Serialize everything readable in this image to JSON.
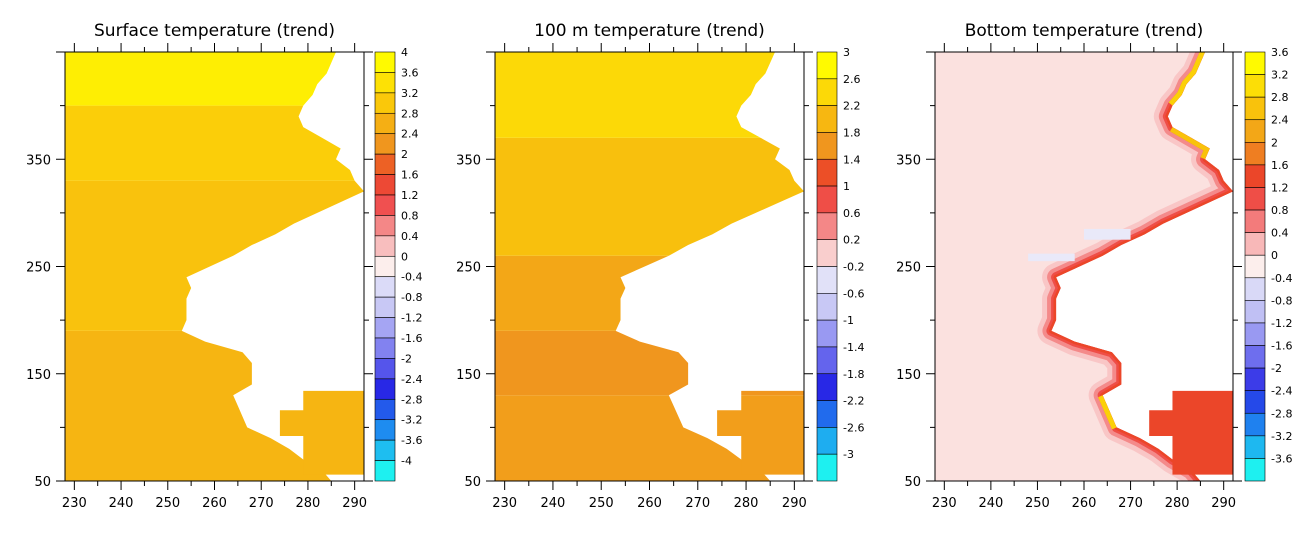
{
  "chart_data": [
    {
      "type": "heatmap",
      "title": "Surface temperature (trend)",
      "xlabel": "",
      "ylabel": "",
      "xlim": [
        228,
        292
      ],
      "ylim": [
        50,
        450
      ],
      "xticks": [
        230,
        240,
        250,
        260,
        270,
        280,
        290
      ],
      "yticks": [
        50,
        150,
        250,
        350
      ],
      "colorbar": {
        "min": -4,
        "max": 4,
        "labels": [
          "4",
          "3.6",
          "3.2",
          "2.8",
          "2.4",
          "2",
          "1.6",
          "1.2",
          "0.8",
          "0.4",
          "0",
          "-0.4",
          "-0.8",
          "-1.2",
          "-1.6",
          "-2",
          "-2.4",
          "-2.8",
          "-3.2",
          "-3.6",
          "-4"
        ]
      },
      "boundary_x": [
        [
          50,
          285
        ],
        [
          60,
          283
        ],
        [
          70,
          279
        ],
        [
          80,
          276
        ],
        [
          90,
          272
        ],
        [
          100,
          267
        ],
        [
          110,
          266
        ],
        [
          120,
          265
        ],
        [
          130,
          264
        ],
        [
          140,
          268
        ],
        [
          150,
          268
        ],
        [
          160,
          268
        ],
        [
          170,
          266
        ],
        [
          180,
          258
        ],
        [
          190,
          253
        ],
        [
          200,
          254
        ],
        [
          210,
          254
        ],
        [
          220,
          254
        ],
        [
          230,
          255
        ],
        [
          240,
          254
        ],
        [
          250,
          259
        ],
        [
          260,
          264
        ],
        [
          270,
          268
        ],
        [
          280,
          273
        ],
        [
          290,
          277
        ],
        [
          300,
          282
        ],
        [
          310,
          287
        ],
        [
          320,
          292
        ],
        [
          330,
          290
        ],
        [
          340,
          289
        ],
        [
          350,
          286
        ],
        [
          360,
          287
        ],
        [
          370,
          283
        ],
        [
          380,
          279
        ],
        [
          390,
          278
        ],
        [
          400,
          279
        ],
        [
          410,
          281
        ],
        [
          420,
          282
        ],
        [
          430,
          284
        ],
        [
          440,
          285
        ],
        [
          450,
          286
        ]
      ],
      "islands": [
        {
          "x": [
            279,
            292
          ],
          "y": [
            56,
            134
          ]
        },
        {
          "x": [
            274,
            285
          ],
          "y": [
            92,
            116
          ]
        }
      ],
      "value_bands": [
        {
          "y": [
            50,
            190
          ],
          "value": 2.9
        },
        {
          "y": [
            190,
            330
          ],
          "value": 3.1
        },
        {
          "y": [
            330,
            400
          ],
          "value": 3.3
        },
        {
          "y": [
            400,
            450
          ],
          "value": 3.8
        }
      ]
    },
    {
      "type": "heatmap",
      "title": "100 m temperature (trend)",
      "xlabel": "",
      "ylabel": "",
      "xlim": [
        228,
        292
      ],
      "ylim": [
        50,
        450
      ],
      "xticks": [
        230,
        240,
        250,
        260,
        270,
        280,
        290
      ],
      "yticks": [
        50,
        150,
        250,
        350
      ],
      "colorbar": {
        "min": -3,
        "max": 3,
        "labels": [
          "3",
          "2.6",
          "2.2",
          "1.8",
          "1.4",
          "1",
          "0.6",
          "0.2",
          "-0.2",
          "-0.6",
          "-1",
          "-1.4",
          "-1.8",
          "-2.2",
          "-2.6",
          "-3"
        ]
      },
      "boundary_x": [
        [
          50,
          285
        ],
        [
          60,
          283
        ],
        [
          70,
          279
        ],
        [
          80,
          276
        ],
        [
          90,
          272
        ],
        [
          100,
          267
        ],
        [
          110,
          266
        ],
        [
          120,
          265
        ],
        [
          130,
          264
        ],
        [
          140,
          268
        ],
        [
          150,
          268
        ],
        [
          160,
          268
        ],
        [
          170,
          266
        ],
        [
          180,
          258
        ],
        [
          190,
          253
        ],
        [
          200,
          254
        ],
        [
          210,
          254
        ],
        [
          220,
          254
        ],
        [
          230,
          255
        ],
        [
          240,
          254
        ],
        [
          250,
          259
        ],
        [
          260,
          264
        ],
        [
          270,
          268
        ],
        [
          280,
          273
        ],
        [
          290,
          277
        ],
        [
          300,
          282
        ],
        [
          310,
          287
        ],
        [
          320,
          292
        ],
        [
          330,
          290
        ],
        [
          340,
          289
        ],
        [
          350,
          286
        ],
        [
          360,
          287
        ],
        [
          370,
          283
        ],
        [
          380,
          279
        ],
        [
          390,
          278
        ],
        [
          400,
          279
        ],
        [
          410,
          281
        ],
        [
          420,
          282
        ],
        [
          430,
          284
        ],
        [
          440,
          285
        ],
        [
          450,
          286
        ]
      ],
      "islands": [
        {
          "x": [
            279,
            292
          ],
          "y": [
            56,
            134
          ]
        },
        {
          "x": [
            274,
            285
          ],
          "y": [
            92,
            116
          ]
        }
      ],
      "value_bands": [
        {
          "y": [
            50,
            130
          ],
          "value": 1.9
        },
        {
          "y": [
            130,
            190
          ],
          "value": 1.8
        },
        {
          "y": [
            190,
            260
          ],
          "value": 2.0
        },
        {
          "y": [
            260,
            370
          ],
          "value": 2.3
        },
        {
          "y": [
            370,
            450
          ],
          "value": 2.6
        }
      ]
    },
    {
      "type": "heatmap",
      "title": "Bottom temperature (trend)",
      "xlabel": "",
      "ylabel": "",
      "xlim": [
        228,
        292
      ],
      "ylim": [
        50,
        450
      ],
      "xticks": [
        230,
        240,
        250,
        260,
        270,
        280,
        290
      ],
      "yticks": [
        50,
        150,
        250,
        350
      ],
      "colorbar": {
        "min": -3.6,
        "max": 3.6,
        "labels": [
          "3.6",
          "3.2",
          "2.8",
          "2.4",
          "2",
          "1.6",
          "1.2",
          "0.8",
          "0.4",
          "0",
          "-0.4",
          "-0.8",
          "-1.2",
          "-1.6",
          "-2",
          "-2.4",
          "-2.8",
          "-3.2",
          "-3.6"
        ]
      },
      "boundary_x": [
        [
          50,
          285
        ],
        [
          60,
          283
        ],
        [
          70,
          279
        ],
        [
          80,
          276
        ],
        [
          90,
          272
        ],
        [
          100,
          267
        ],
        [
          110,
          266
        ],
        [
          120,
          265
        ],
        [
          130,
          264
        ],
        [
          140,
          268
        ],
        [
          150,
          268
        ],
        [
          160,
          268
        ],
        [
          170,
          266
        ],
        [
          180,
          258
        ],
        [
          190,
          253
        ],
        [
          200,
          254
        ],
        [
          210,
          254
        ],
        [
          220,
          254
        ],
        [
          230,
          255
        ],
        [
          240,
          254
        ],
        [
          250,
          259
        ],
        [
          260,
          264
        ],
        [
          270,
          268
        ],
        [
          280,
          273
        ],
        [
          290,
          277
        ],
        [
          300,
          282
        ],
        [
          310,
          287
        ],
        [
          320,
          292
        ],
        [
          330,
          290
        ],
        [
          340,
          289
        ],
        [
          350,
          286
        ],
        [
          360,
          287
        ],
        [
          370,
          283
        ],
        [
          380,
          279
        ],
        [
          390,
          278
        ],
        [
          400,
          279
        ],
        [
          410,
          281
        ],
        [
          420,
          282
        ],
        [
          430,
          284
        ],
        [
          440,
          285
        ],
        [
          450,
          286
        ]
      ],
      "islands": [
        {
          "x": [
            279,
            292
          ],
          "y": [
            56,
            134
          ]
        },
        {
          "x": [
            274,
            285
          ],
          "y": [
            92,
            116
          ]
        }
      ],
      "interior_value": 0.1,
      "coastal_band_values": [
        0.3,
        0.7,
        1.2,
        1.6
      ],
      "coastal_yellow_patches": [
        {
          "y": [
            100,
            135
          ],
          "value": 3.0
        },
        {
          "y": [
            350,
            380
          ],
          "value": 2.8
        },
        {
          "y": [
            400,
            450
          ],
          "value": 3.0
        }
      ],
      "negative_patches": [
        {
          "x": [
            248,
            258
          ],
          "y": [
            255,
            262
          ],
          "value": -0.1
        },
        {
          "x": [
            260,
            270
          ],
          "y": [
            275,
            285
          ],
          "value": -0.1
        }
      ]
    }
  ]
}
